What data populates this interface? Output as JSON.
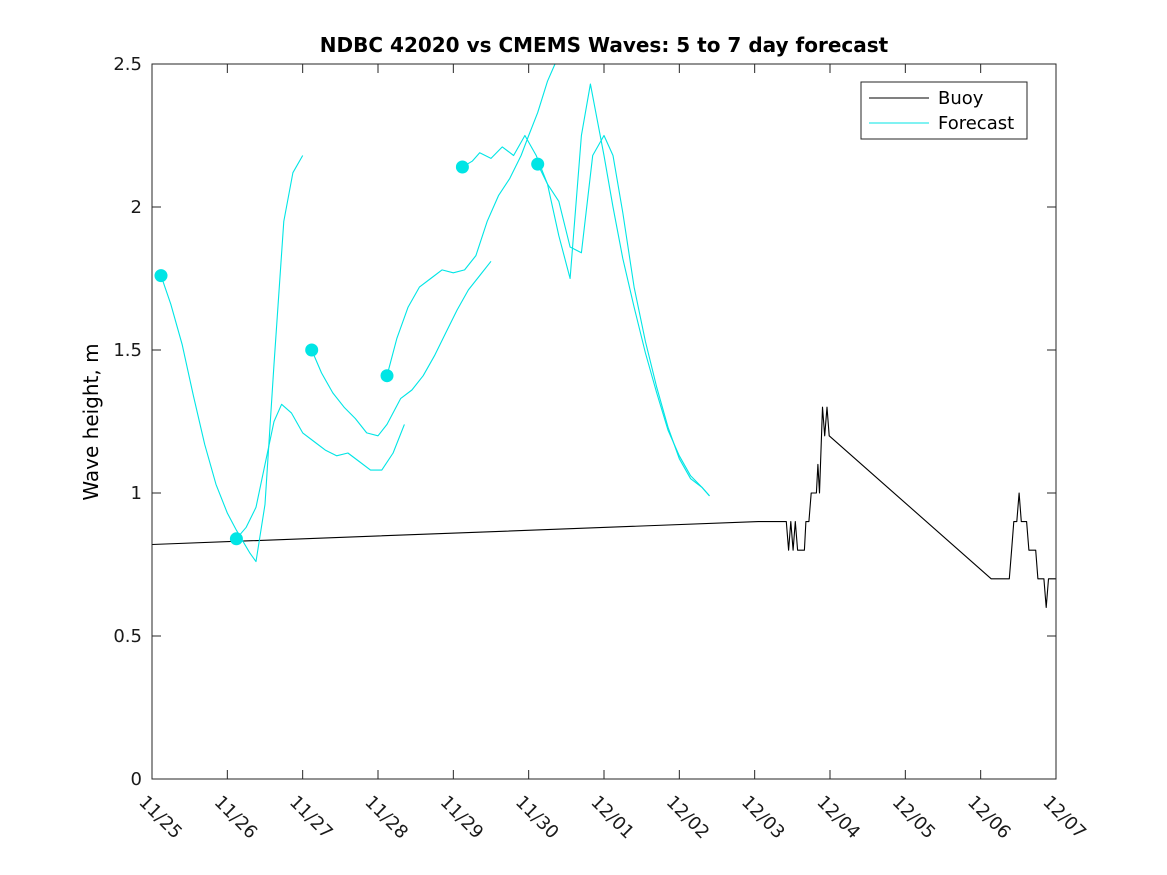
{
  "chart_data": {
    "type": "line",
    "title": "NDBC 42020 vs CMEMS Waves: 5 to 7 day forecast",
    "xlabel": "",
    "ylabel": "Wave height, m",
    "x_unit": "days",
    "xlim": [
      0,
      12
    ],
    "ylim": [
      0,
      2.5
    ],
    "x_ticks": [
      {
        "x": 0,
        "label": "11/25"
      },
      {
        "x": 1,
        "label": "11/26"
      },
      {
        "x": 2,
        "label": "11/27"
      },
      {
        "x": 3,
        "label": "11/28"
      },
      {
        "x": 4,
        "label": "11/29"
      },
      {
        "x": 5,
        "label": "11/30"
      },
      {
        "x": 6,
        "label": "12/01"
      },
      {
        "x": 7,
        "label": "12/02"
      },
      {
        "x": 8,
        "label": "12/03"
      },
      {
        "x": 9,
        "label": "12/04"
      },
      {
        "x": 10,
        "label": "12/05"
      },
      {
        "x": 11,
        "label": "12/06"
      },
      {
        "x": 12,
        "label": "12/07"
      }
    ],
    "y_ticks": [
      {
        "y": 0,
        "label": "0"
      },
      {
        "y": 0.5,
        "label": "0.5"
      },
      {
        "y": 1,
        "label": "1"
      },
      {
        "y": 1.5,
        "label": "1.5"
      },
      {
        "y": 2,
        "label": "2"
      },
      {
        "y": 2.5,
        "label": "2.5"
      }
    ],
    "grid": false,
    "legend": {
      "placement": "top-right",
      "entries": [
        {
          "name": "Buoy",
          "color": "#000000"
        },
        {
          "name": "Forecast",
          "color": "#00e5e5"
        }
      ]
    },
    "series": [
      {
        "name": "Buoy",
        "color": "#000000",
        "points": [
          [
            0,
            0.82
          ],
          [
            8.05,
            0.9
          ],
          [
            8.42,
            0.9
          ],
          [
            8.45,
            0.8
          ],
          [
            8.48,
            0.9
          ],
          [
            8.51,
            0.8
          ],
          [
            8.54,
            0.9
          ],
          [
            8.57,
            0.8
          ],
          [
            8.66,
            0.8
          ],
          [
            8.68,
            0.9
          ],
          [
            8.72,
            0.9
          ],
          [
            8.75,
            1.0
          ],
          [
            8.82,
            1.0
          ],
          [
            8.84,
            1.1
          ],
          [
            8.86,
            1.0
          ],
          [
            8.9,
            1.3
          ],
          [
            8.93,
            1.2
          ],
          [
            8.96,
            1.3
          ],
          [
            8.99,
            1.2
          ],
          [
            11.14,
            0.7
          ],
          [
            11.38,
            0.7
          ],
          [
            11.41,
            0.8
          ],
          [
            11.44,
            0.9
          ],
          [
            11.48,
            0.9
          ],
          [
            11.51,
            1.0
          ],
          [
            11.54,
            0.9
          ],
          [
            11.61,
            0.9
          ],
          [
            11.64,
            0.8
          ],
          [
            11.73,
            0.8
          ],
          [
            11.76,
            0.7
          ],
          [
            11.84,
            0.7
          ],
          [
            11.87,
            0.6
          ],
          [
            11.9,
            0.7
          ],
          [
            12,
            0.7
          ]
        ]
      },
      {
        "name": "",
        "color": "#00e5e5",
        "marker": [
          0.12,
          1.76
        ],
        "points": [
          [
            0.12,
            1.76
          ],
          [
            0.25,
            1.66
          ],
          [
            0.4,
            1.52
          ],
          [
            0.55,
            1.34
          ],
          [
            0.7,
            1.17
          ],
          [
            0.85,
            1.03
          ],
          [
            1.0,
            0.93
          ],
          [
            1.12,
            0.87
          ],
          [
            1.3,
            0.79
          ],
          [
            1.38,
            0.76
          ],
          [
            1.5,
            0.96
          ],
          [
            1.62,
            1.45
          ],
          [
            1.75,
            1.95
          ],
          [
            1.87,
            2.12
          ],
          [
            2.0,
            2.18
          ]
        ]
      },
      {
        "name": "",
        "color": "#00e5e5",
        "marker": [
          1.12,
          0.84
        ],
        "points": [
          [
            1.12,
            0.84
          ],
          [
            1.25,
            0.88
          ],
          [
            1.38,
            0.95
          ],
          [
            1.5,
            1.1
          ],
          [
            1.62,
            1.25
          ],
          [
            1.72,
            1.31
          ],
          [
            1.85,
            1.28
          ],
          [
            2.0,
            1.21
          ],
          [
            2.15,
            1.18
          ],
          [
            2.3,
            1.15
          ],
          [
            2.45,
            1.13
          ],
          [
            2.6,
            1.14
          ],
          [
            2.75,
            1.11
          ],
          [
            2.9,
            1.08
          ],
          [
            3.05,
            1.08
          ],
          [
            3.2,
            1.14
          ],
          [
            3.35,
            1.24
          ]
        ]
      },
      {
        "name": "",
        "color": "#00e5e5",
        "marker": [
          2.12,
          1.5
        ],
        "points": [
          [
            2.12,
            1.5
          ],
          [
            2.25,
            1.42
          ],
          [
            2.4,
            1.35
          ],
          [
            2.55,
            1.3
          ],
          [
            2.7,
            1.26
          ],
          [
            2.85,
            1.21
          ],
          [
            3.0,
            1.2
          ],
          [
            3.12,
            1.24
          ],
          [
            3.3,
            1.33
          ],
          [
            3.45,
            1.36
          ],
          [
            3.6,
            1.41
          ],
          [
            3.75,
            1.48
          ],
          [
            3.9,
            1.56
          ],
          [
            4.05,
            1.64
          ],
          [
            4.2,
            1.71
          ],
          [
            4.35,
            1.76
          ],
          [
            4.5,
            1.81
          ]
        ]
      },
      {
        "name": "",
        "color": "#00e5e5",
        "marker": [
          3.12,
          1.41
        ],
        "points": [
          [
            3.12,
            1.41
          ],
          [
            3.25,
            1.54
          ],
          [
            3.4,
            1.65
          ],
          [
            3.55,
            1.72
          ],
          [
            3.7,
            1.75
          ],
          [
            3.85,
            1.78
          ],
          [
            4.0,
            1.77
          ],
          [
            4.15,
            1.78
          ],
          [
            4.3,
            1.83
          ],
          [
            4.45,
            1.95
          ],
          [
            4.6,
            2.04
          ],
          [
            4.75,
            2.1
          ],
          [
            4.9,
            2.18
          ],
          [
            5.0,
            2.25
          ],
          [
            5.12,
            2.33
          ],
          [
            5.25,
            2.44
          ],
          [
            5.35,
            2.5
          ]
        ]
      },
      {
        "name": "",
        "color": "#00e5e5",
        "marker": [
          4.12,
          2.14
        ],
        "points": [
          [
            4.12,
            2.14
          ],
          [
            4.25,
            2.16
          ],
          [
            4.35,
            2.19
          ],
          [
            4.5,
            2.17
          ],
          [
            4.65,
            2.21
          ],
          [
            4.8,
            2.18
          ],
          [
            4.95,
            2.25
          ],
          [
            5.1,
            2.18
          ],
          [
            5.25,
            2.08
          ],
          [
            5.4,
            2.02
          ],
          [
            5.55,
            1.86
          ],
          [
            5.7,
            1.84
          ],
          [
            5.85,
            2.18
          ],
          [
            6.0,
            2.25
          ],
          [
            6.12,
            2.18
          ],
          [
            6.25,
            1.98
          ],
          [
            6.4,
            1.72
          ],
          [
            6.55,
            1.53
          ],
          [
            6.7,
            1.37
          ],
          [
            6.85,
            1.23
          ],
          [
            7.0,
            1.12
          ],
          [
            7.15,
            1.05
          ],
          [
            7.3,
            1.02
          ],
          [
            7.4,
            0.99
          ]
        ]
      },
      {
        "name": "",
        "color": "#00e5e5",
        "marker": [
          5.12,
          2.15
        ],
        "points": [
          [
            5.12,
            2.15
          ],
          [
            5.25,
            2.08
          ],
          [
            5.4,
            1.9
          ],
          [
            5.55,
            1.75
          ],
          [
            5.7,
            2.25
          ],
          [
            5.82,
            2.43
          ],
          [
            6.0,
            2.18
          ],
          [
            6.12,
            2.0
          ],
          [
            6.25,
            1.82
          ],
          [
            6.4,
            1.65
          ],
          [
            6.55,
            1.49
          ],
          [
            6.7,
            1.35
          ],
          [
            6.85,
            1.22
          ],
          [
            7.0,
            1.13
          ],
          [
            7.15,
            1.06
          ],
          [
            7.3,
            1.02
          ],
          [
            7.4,
            0.99
          ]
        ]
      }
    ]
  }
}
